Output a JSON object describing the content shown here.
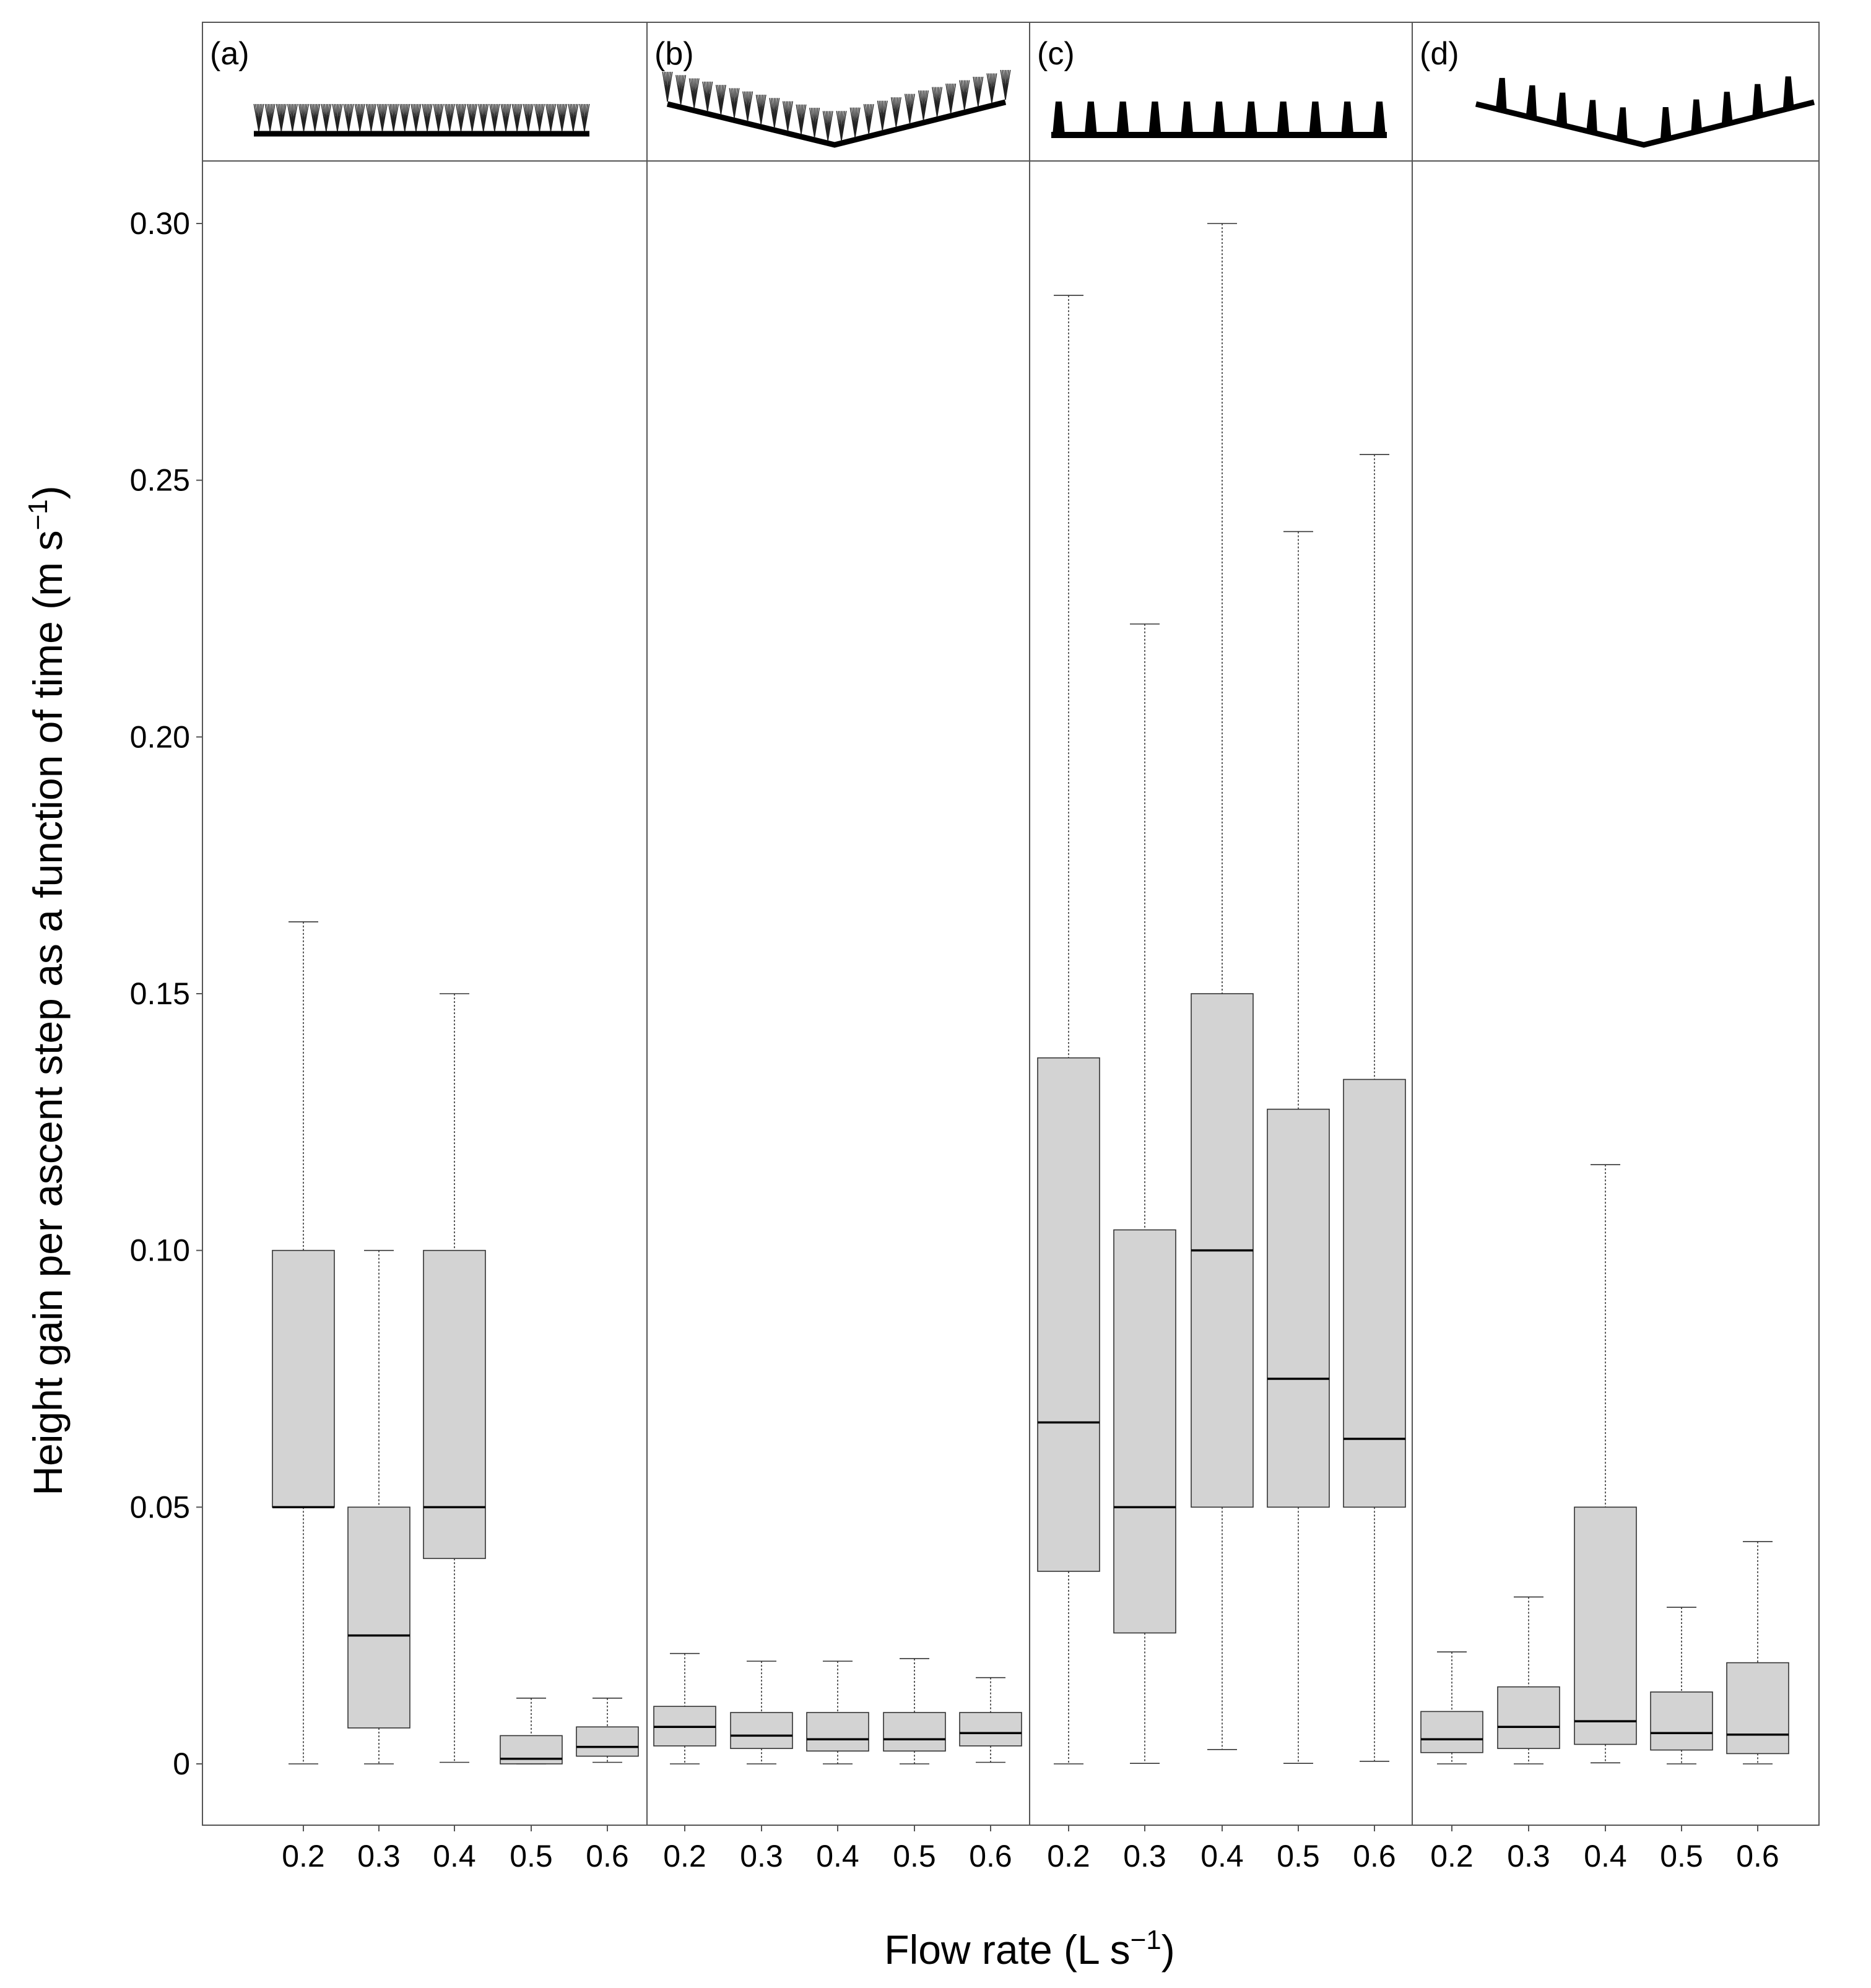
{
  "chart_data": {
    "type": "boxplot",
    "ylabel": "Height gain per ascent step as a function of time (m s",
    "ylabel_sup": "−1",
    "ylabel_end": ")",
    "xlabel": "Flow rate (L s",
    "xlabel_sup": "−1",
    "xlabel_end": ")",
    "ylim": [
      -0.012,
      0.312
    ],
    "yticks": [
      0,
      0.05,
      0.1,
      0.15,
      0.2,
      0.25,
      0.3
    ],
    "ytick_labels": [
      "0",
      "0.05",
      "0.10",
      "0.15",
      "0.20",
      "0.25",
      "0.30"
    ],
    "categories": [
      "0.2",
      "0.3",
      "0.4",
      "0.5",
      "0.6"
    ],
    "box_fill": "#d3d3d3",
    "panels": [
      {
        "label": "(a)",
        "icon": "flat-bristle-brush",
        "boxes": [
          {
            "min": 0.0,
            "q1": 0.05,
            "median": 0.05,
            "q3": 0.1,
            "max": 0.164
          },
          {
            "min": 0.0,
            "q1": 0.007,
            "median": 0.025,
            "q3": 0.05,
            "max": 0.1
          },
          {
            "min": 0.0003,
            "q1": 0.04,
            "median": 0.05,
            "q3": 0.1,
            "max": 0.15
          },
          {
            "min": 0.0,
            "q1": 0.0,
            "median": 0.001,
            "q3": 0.0055,
            "max": 0.0128
          },
          {
            "min": 0.0003,
            "q1": 0.0015,
            "median": 0.0033,
            "q3": 0.0072,
            "max": 0.0128
          }
        ]
      },
      {
        "label": "(b)",
        "icon": "v-shaped-bristle-brush",
        "boxes": [
          {
            "min": 0.0,
            "q1": 0.0035,
            "median": 0.0072,
            "q3": 0.0112,
            "max": 0.0215
          },
          {
            "min": 0.0,
            "q1": 0.003,
            "median": 0.0055,
            "q3": 0.01,
            "max": 0.02
          },
          {
            "min": 0.0,
            "q1": 0.0025,
            "median": 0.0048,
            "q3": 0.01,
            "max": 0.02
          },
          {
            "min": 0.0,
            "q1": 0.0025,
            "median": 0.0048,
            "q3": 0.01,
            "max": 0.0205
          },
          {
            "min": 0.0003,
            "q1": 0.0035,
            "median": 0.006,
            "q3": 0.01,
            "max": 0.0168
          }
        ]
      },
      {
        "label": "(c)",
        "icon": "flat-blade-brush",
        "boxes": [
          {
            "min": 0.0,
            "q1": 0.0375,
            "median": 0.0665,
            "q3": 0.1375,
            "max": 0.286
          },
          {
            "min": 0.0001,
            "q1": 0.0255,
            "median": 0.05,
            "q3": 0.104,
            "max": 0.222
          },
          {
            "min": 0.0028,
            "q1": 0.05,
            "median": 0.1,
            "q3": 0.15,
            "max": 0.3
          },
          {
            "min": 0.0001,
            "q1": 0.05,
            "median": 0.075,
            "q3": 0.1275,
            "max": 0.24
          },
          {
            "min": 0.0005,
            "q1": 0.05,
            "median": 0.0633,
            "q3": 0.1333,
            "max": 0.255
          }
        ]
      },
      {
        "label": "(d)",
        "icon": "v-shaped-blade-brush",
        "boxes": [
          {
            "min": 0.0,
            "q1": 0.0022,
            "median": 0.0048,
            "q3": 0.0102,
            "max": 0.0218
          },
          {
            "min": 0.0,
            "q1": 0.003,
            "median": 0.0072,
            "q3": 0.015,
            "max": 0.0325
          },
          {
            "min": 0.0002,
            "q1": 0.0038,
            "median": 0.0083,
            "q3": 0.05,
            "max": 0.1167
          },
          {
            "min": 0.0,
            "q1": 0.0027,
            "median": 0.006,
            "q3": 0.014,
            "max": 0.0305
          },
          {
            "min": 0.0,
            "q1": 0.002,
            "median": 0.0057,
            "q3": 0.0197,
            "max": 0.0433
          }
        ]
      }
    ]
  }
}
